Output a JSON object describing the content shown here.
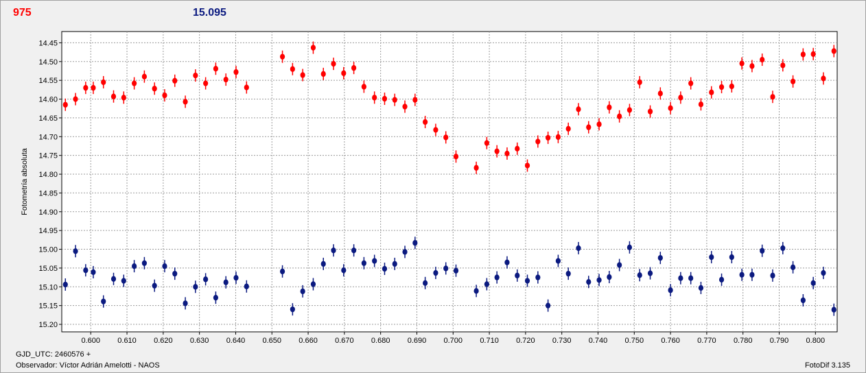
{
  "header": {
    "ref_label": "975",
    "value_label": "15.095"
  },
  "footer": {
    "gjd": "GJD_UTC: 2460576 +",
    "observer": "Observador: Víctor Adrián Amelotti - NAOS",
    "version": "FotoDif 3.135"
  },
  "colors": {
    "series_red": "#ff0000",
    "series_blue": "#0b1a80",
    "grid": "#9a9a9a",
    "plot_bg": "#ffffff"
  },
  "chart_data": {
    "type": "scatter",
    "ylabel": "Fotometría absoluta",
    "xlabel": "",
    "xlim": [
      0.592,
      0.806
    ],
    "ylim": [
      14.42,
      15.22
    ],
    "y_inverted": true,
    "grid": true,
    "x_ticks": [
      "0.600",
      "0.610",
      "0.620",
      "0.630",
      "0.640",
      "0.650",
      "0.660",
      "0.670",
      "0.680",
      "0.690",
      "0.700",
      "0.710",
      "0.720",
      "0.730",
      "0.740",
      "0.750",
      "0.760",
      "0.770",
      "0.780",
      "0.790",
      "0.800"
    ],
    "y_ticks": [
      "14.45",
      "14.50",
      "14.55",
      "14.60",
      "14.65",
      "14.70",
      "14.75",
      "14.80",
      "14.85",
      "14.90",
      "14.95",
      "15.00",
      "15.05",
      "15.10",
      "15.15",
      "15.20"
    ],
    "series": [
      {
        "color": "#ff0000",
        "x": [
          0.593,
          0.5958,
          0.5986,
          0.6007,
          0.6035,
          0.6063,
          0.6091,
          0.612,
          0.6148,
          0.6176,
          0.6204,
          0.6232,
          0.6261,
          0.6289,
          0.6317,
          0.6345,
          0.6373,
          0.6401,
          0.643,
          0.6529,
          0.6557,
          0.6585,
          0.6614,
          0.6642,
          0.667,
          0.6698,
          0.6726,
          0.6754,
          0.6783,
          0.6811,
          0.6839,
          0.6867,
          0.6895,
          0.6923,
          0.6952,
          0.698,
          0.7008,
          0.7064,
          0.7093,
          0.7121,
          0.7149,
          0.7177,
          0.7205,
          0.7234,
          0.7262,
          0.729,
          0.7318,
          0.7346,
          0.7374,
          0.7403,
          0.7431,
          0.7459,
          0.7487,
          0.7515,
          0.7544,
          0.7572,
          0.76,
          0.7628,
          0.7656,
          0.7684,
          0.7713,
          0.7741,
          0.7769,
          0.7797,
          0.7825,
          0.7853,
          0.7882,
          0.791,
          0.7938,
          0.7966,
          0.7994,
          0.8022,
          0.8051
        ],
        "y": [
          14.615,
          14.6,
          14.57,
          14.57,
          14.555,
          14.593,
          14.596,
          14.558,
          14.54,
          14.572,
          14.59,
          14.551,
          14.607,
          14.537,
          14.558,
          14.519,
          14.548,
          14.528,
          14.569,
          14.487,
          14.52,
          14.536,
          14.463,
          14.533,
          14.506,
          14.531,
          14.517,
          14.567,
          14.596,
          14.599,
          14.602,
          14.62,
          14.602,
          14.661,
          14.682,
          14.702,
          14.753,
          14.783,
          14.717,
          14.739,
          14.745,
          14.732,
          14.777,
          14.713,
          14.703,
          14.701,
          14.679,
          14.627,
          14.675,
          14.667,
          14.622,
          14.646,
          14.629,
          14.555,
          14.633,
          14.585,
          14.624,
          14.596,
          14.558,
          14.614,
          14.582,
          14.568,
          14.566,
          14.505,
          14.512,
          14.495,
          14.594,
          14.51,
          14.553,
          14.481,
          14.48,
          14.545,
          14.472
        ]
      },
      {
        "color": "#0b1a80",
        "x": [
          0.593,
          0.5958,
          0.5986,
          0.6007,
          0.6035,
          0.6063,
          0.6091,
          0.612,
          0.6148,
          0.6176,
          0.6204,
          0.6232,
          0.6261,
          0.6289,
          0.6317,
          0.6345,
          0.6373,
          0.6401,
          0.643,
          0.6529,
          0.6557,
          0.6585,
          0.6614,
          0.6642,
          0.667,
          0.6698,
          0.6726,
          0.6754,
          0.6783,
          0.6811,
          0.6839,
          0.6867,
          0.6895,
          0.6923,
          0.6952,
          0.698,
          0.7008,
          0.7064,
          0.7093,
          0.7121,
          0.7149,
          0.7177,
          0.7205,
          0.7234,
          0.7262,
          0.729,
          0.7318,
          0.7346,
          0.7374,
          0.7403,
          0.7431,
          0.7459,
          0.7487,
          0.7515,
          0.7544,
          0.7572,
          0.76,
          0.7628,
          0.7656,
          0.7684,
          0.7713,
          0.7741,
          0.7769,
          0.7797,
          0.7825,
          0.7853,
          0.7882,
          0.791,
          0.7938,
          0.7966,
          0.7994,
          0.8022,
          0.8051
        ],
        "y": [
          15.094,
          15.005,
          15.056,
          15.061,
          15.139,
          15.079,
          15.084,
          15.045,
          15.037,
          15.097,
          15.045,
          15.065,
          15.144,
          15.1,
          15.08,
          15.129,
          15.088,
          15.076,
          15.099,
          15.059,
          15.16,
          15.112,
          15.093,
          15.039,
          15.003,
          15.056,
          15.003,
          15.037,
          15.031,
          15.052,
          15.039,
          15.007,
          14.983,
          15.09,
          15.063,
          15.051,
          15.057,
          15.111,
          15.093,
          15.075,
          15.035,
          15.07,
          15.084,
          15.075,
          15.15,
          15.031,
          15.065,
          14.997,
          15.087,
          15.082,
          15.074,
          15.042,
          14.995,
          15.069,
          15.064,
          15.023,
          15.109,
          15.077,
          15.077,
          15.103,
          15.021,
          15.081,
          15.021,
          15.068,
          15.068,
          15.004,
          15.07,
          14.997,
          15.048,
          15.136,
          15.09,
          15.063,
          15.161
        ]
      }
    ]
  }
}
